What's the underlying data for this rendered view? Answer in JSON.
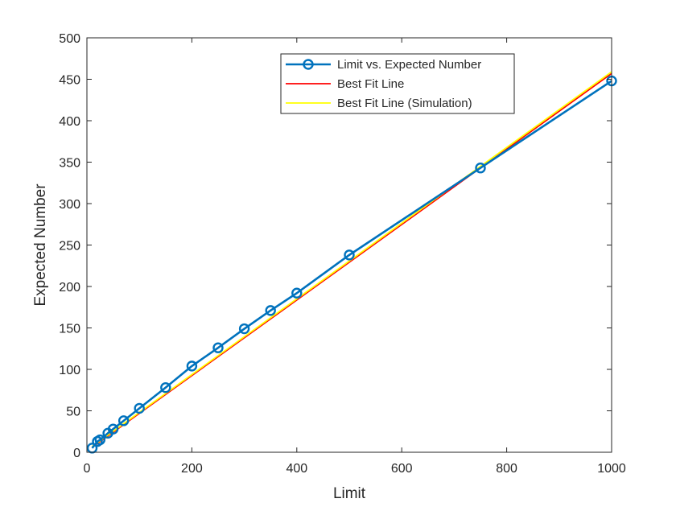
{
  "chart_data": {
    "type": "line",
    "title": "",
    "xlabel": "Limit",
    "ylabel": "Expected Number",
    "xlim": [
      0,
      1000
    ],
    "ylim": [
      0,
      500
    ],
    "xticks": [
      0,
      200,
      400,
      600,
      800,
      1000
    ],
    "yticks": [
      0,
      50,
      100,
      150,
      200,
      250,
      300,
      350,
      400,
      450,
      500
    ],
    "grid": false,
    "legend_position": "top-right",
    "series": [
      {
        "name": "Limit vs. Expected Number",
        "color": "#0072BD",
        "marker": "circle",
        "x": [
          10,
          20,
          25,
          40,
          50,
          70,
          100,
          150,
          200,
          250,
          300,
          350,
          400,
          500,
          750,
          1000
        ],
        "y": [
          5,
          13,
          15,
          23,
          28,
          38,
          53,
          78,
          104,
          126,
          149,
          171,
          192,
          238,
          343,
          448
        ]
      },
      {
        "name": "Best Fit Line",
        "color": "#FF0000",
        "marker": "none",
        "x": [
          10,
          1000
        ],
        "y": [
          6,
          457
        ]
      },
      {
        "name": "Best Fit Line (Simulation)",
        "color": "#FFFF00",
        "marker": "none",
        "x": [
          10,
          1000
        ],
        "y": [
          7,
          459
        ]
      }
    ]
  }
}
